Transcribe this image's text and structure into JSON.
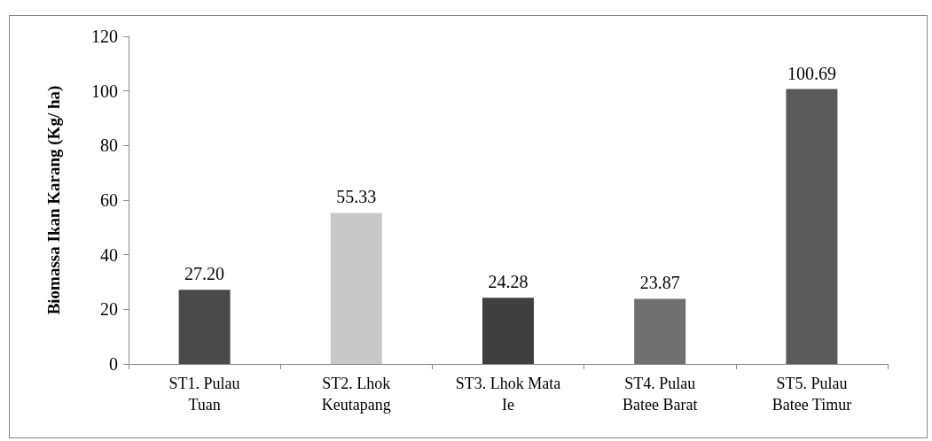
{
  "chart_data": {
    "type": "bar",
    "ylabel": "Biomassa Ikan Karang (Kg/ ha)",
    "categories": [
      "ST1. Pulau\nTuan",
      "ST2. Lhok\nKeutapang",
      "ST3. Lhok Mata\nIe",
      "ST4. Pulau\nBatee Barat",
      "ST5. Pulau\nBatee Timur"
    ],
    "values": [
      27.2,
      55.33,
      24.28,
      23.87,
      100.69
    ],
    "value_labels": [
      "27.20",
      "55.33",
      "24.28",
      "23.87",
      "100.69"
    ],
    "colors": [
      "#4a4a4a",
      "#c8c8c8",
      "#404040",
      "#707070",
      "#5a5a5a"
    ],
    "ylim": [
      0,
      120
    ],
    "yticks": [
      0,
      20,
      40,
      60,
      80,
      100,
      120
    ],
    "grid": false
  }
}
